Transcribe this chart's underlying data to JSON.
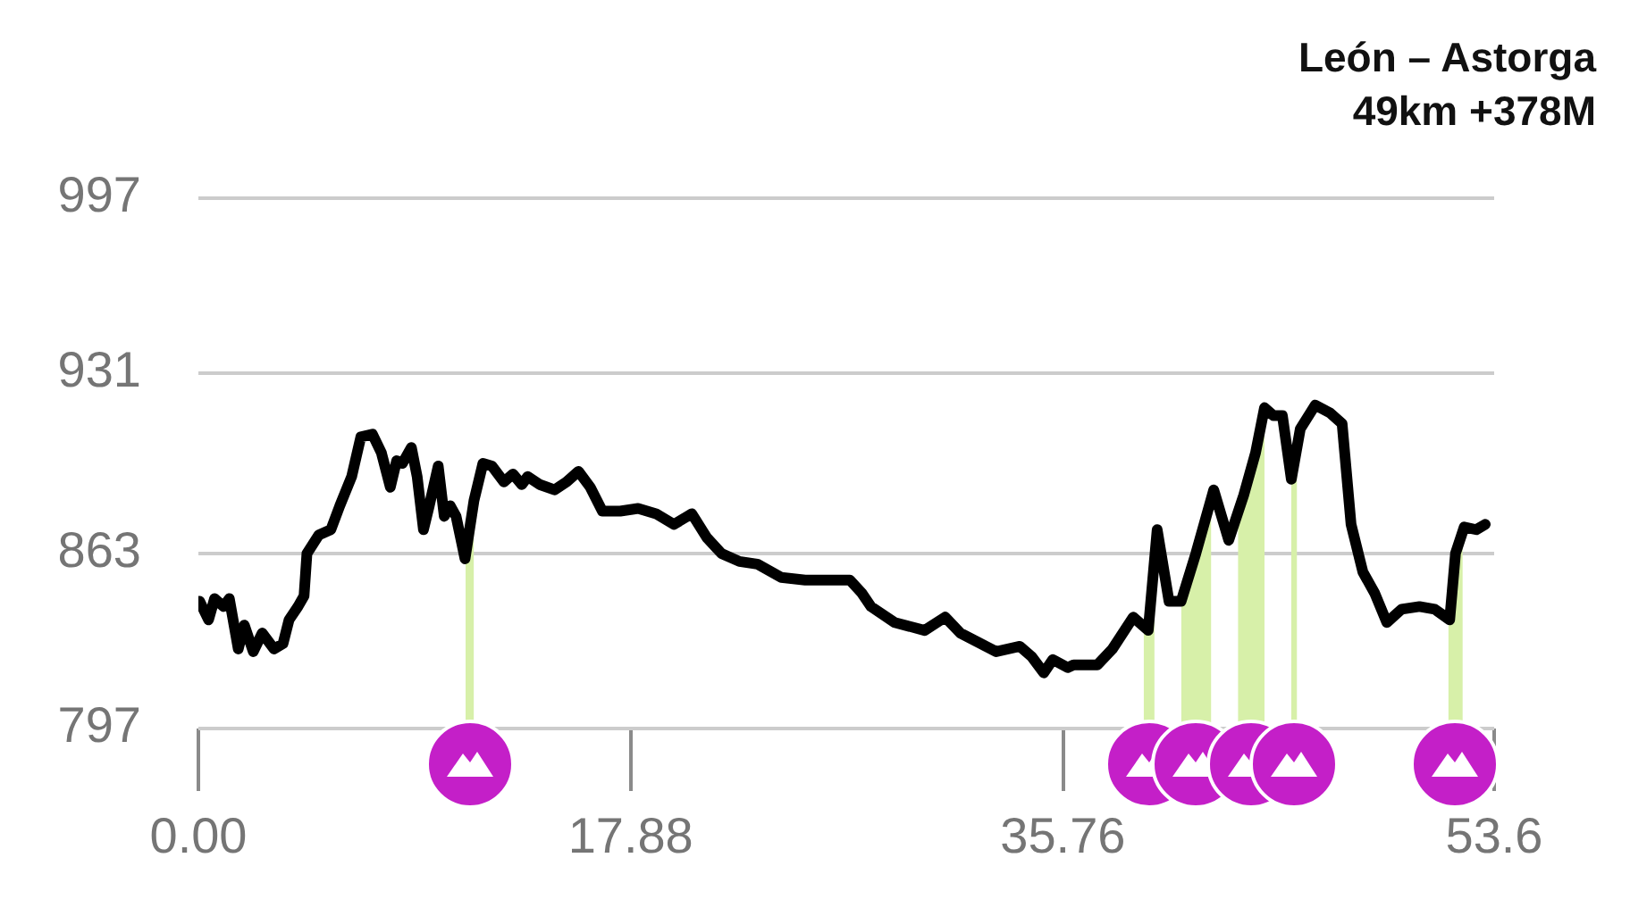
{
  "chart_data": {
    "type": "line",
    "title": "León – Astorga",
    "subtitle": "49km +378M",
    "xlim": [
      0,
      53.6
    ],
    "xticks": [
      {
        "value": 0,
        "label": "0.00"
      },
      17.88,
      35.76,
      53.6
    ],
    "ylim": [
      797,
      997
    ],
    "yticks": [
      797,
      863,
      931,
      997
    ],
    "grid": "y",
    "marker": "none",
    "series": [
      {
        "type": "line",
        "color": "#000000",
        "x": [
          0.05,
          0.42,
          0.67,
          1.04,
          1.28,
          1.65,
          1.9,
          2.27,
          2.64,
          3.13,
          3.5,
          3.75,
          4.12,
          4.37,
          4.49,
          4.98,
          5.48,
          5.85,
          6.34,
          6.72,
          7.2,
          7.57,
          7.94,
          8.2,
          8.44,
          8.81,
          9.05,
          9.31,
          9.55,
          9.92,
          10.17,
          10.42,
          10.66,
          11.03,
          11.4,
          11.77,
          12.14,
          12.64,
          13.01,
          13.38,
          13.62,
          14.12,
          14.73,
          15.23,
          15.72,
          16.21,
          16.71,
          17.45,
          18.19,
          18.93,
          19.67,
          20.41,
          21.03,
          21.64,
          22.38,
          23.12,
          24.11,
          25.1,
          26.95,
          27.45,
          27.82,
          28.8,
          30.04,
          30.89,
          31.52,
          33.0,
          33.98,
          34.48,
          34.97,
          35.34,
          35.96,
          36.2,
          37.19,
          37.81,
          38.67,
          39.29,
          39.66,
          40.15,
          40.65,
          41.26,
          42.0,
          42.62,
          43.24,
          43.73,
          44.1,
          44.47,
          44.84,
          45.21,
          45.58,
          46.2,
          46.81,
          47.31,
          47.68,
          48.17,
          48.66,
          49.16,
          49.77,
          50.51,
          51.14,
          51.76,
          52.0,
          52.36,
          52.86,
          53.23
        ],
        "values": [
          845,
          838,
          846,
          843,
          846,
          827,
          836,
          826,
          833,
          827,
          829,
          838,
          843,
          847,
          863,
          870,
          872,
          881,
          892,
          907,
          908,
          901,
          888,
          898,
          897,
          903,
          892,
          872,
          881,
          896,
          877,
          881,
          877,
          861,
          883,
          897,
          896,
          890,
          893,
          889,
          892,
          889,
          887,
          890,
          894,
          888,
          879,
          879,
          880,
          878,
          874,
          878,
          869,
          863,
          860,
          859,
          854,
          853,
          853,
          848,
          843,
          837,
          834,
          839,
          833,
          826,
          828,
          824,
          818,
          823,
          820,
          821,
          821,
          827,
          839,
          834,
          872,
          845,
          845,
          863,
          887,
          868,
          885,
          901,
          918,
          915,
          915,
          891,
          910,
          919,
          916,
          912,
          874,
          856,
          848,
          837,
          842,
          843,
          842,
          838,
          863,
          873,
          872,
          874
        ]
      },
      {
        "type": "area",
        "color": "#d7f0a9",
        "x": [
          11.05,
          11.4,
          11.5,
          39.1,
          39.29,
          39.55,
          40.0,
          40.65,
          41.26,
          41.9,
          42.3,
          43.0,
          43.24,
          43.73,
          44.1,
          44.6,
          45.2,
          45.45,
          48.0,
          51.7,
          52.0,
          52.3
        ],
        "values": [
          861,
          883,
          null,
          836,
          834,
          860,
          null,
          845,
          863,
          884,
          null,
          878,
          885,
          901,
          918,
          null,
          891,
          903,
          null,
          839,
          863,
          872
        ]
      }
    ]
  }
}
